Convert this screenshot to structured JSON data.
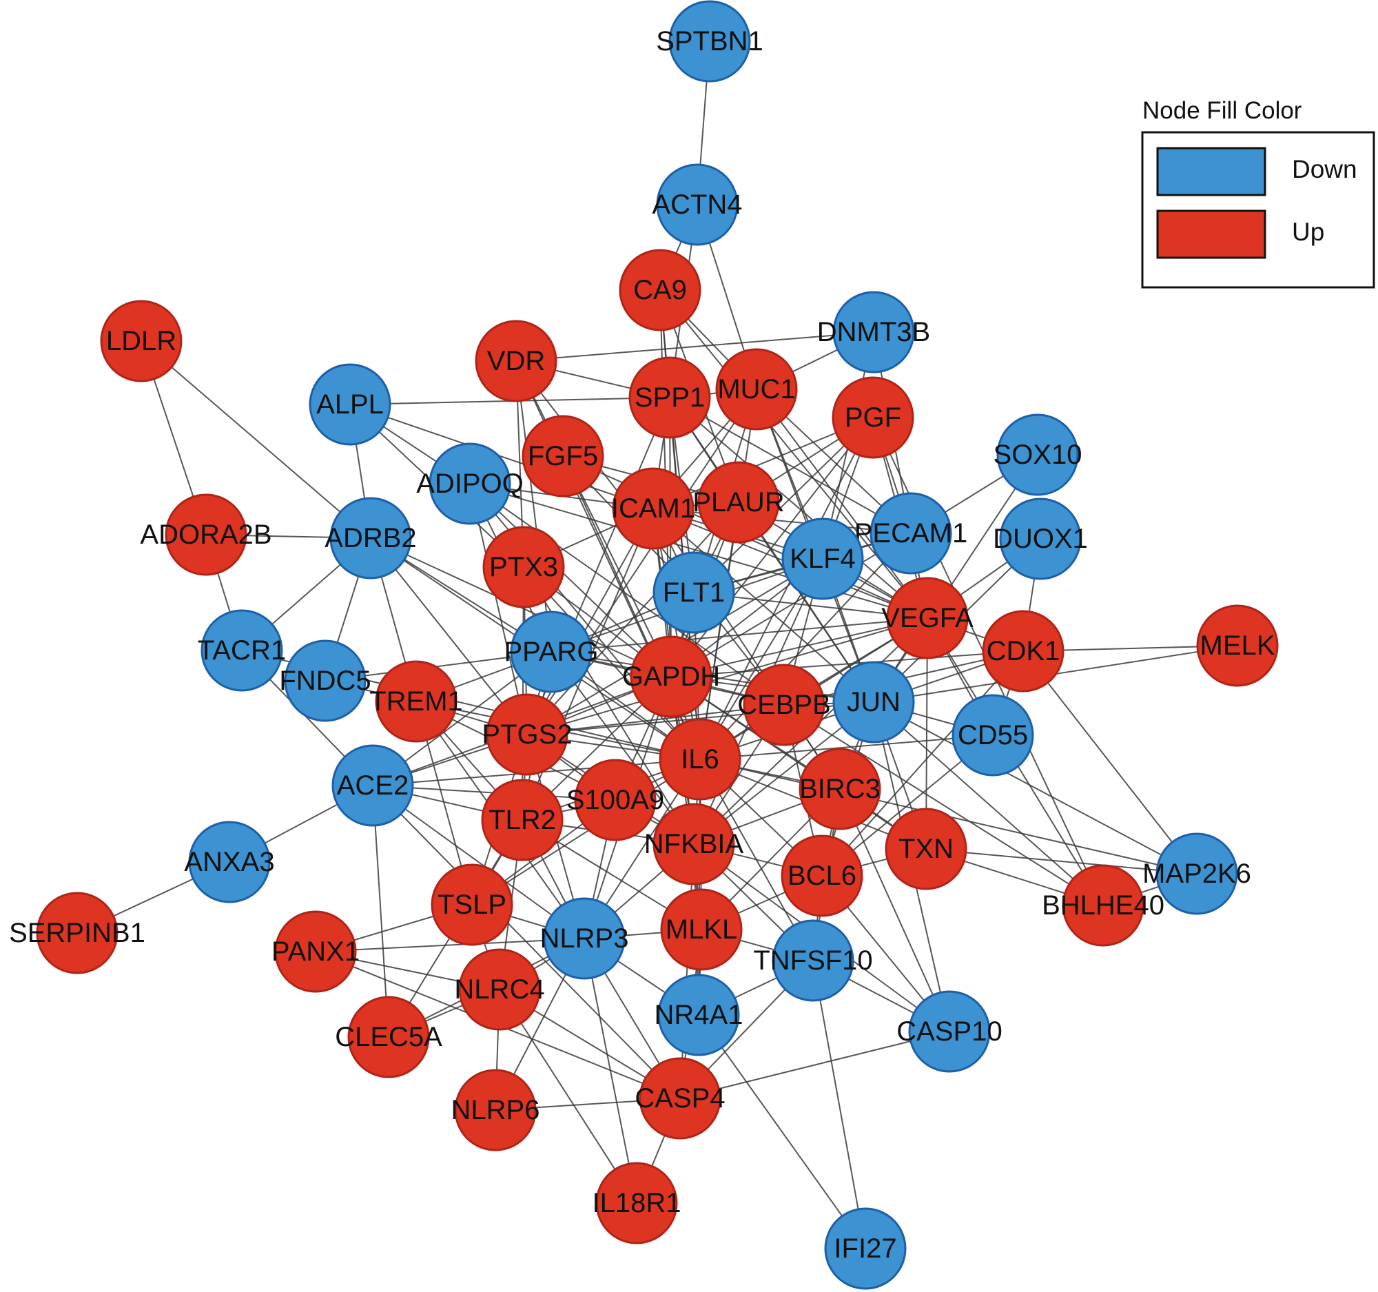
{
  "legend": {
    "title": "Node Fill Color",
    "items": [
      {
        "label": "Down",
        "color": "#3d92d2"
      },
      {
        "label": "Up",
        "color": "#dd3522"
      }
    ]
  },
  "colors": {
    "down": "#3d92d2",
    "up": "#dd3522",
    "edge": "#3a3a3a",
    "border_down": "#1d5fa8",
    "border_up": "#b02418"
  },
  "nodes": [
    {
      "id": "SPTBN1",
      "type": "down"
    },
    {
      "id": "ACTN4",
      "type": "down"
    },
    {
      "id": "CA9",
      "type": "up"
    },
    {
      "id": "LDLR",
      "type": "up"
    },
    {
      "id": "DNMT3B",
      "type": "down"
    },
    {
      "id": "VDR",
      "type": "up"
    },
    {
      "id": "ALPL",
      "type": "down"
    },
    {
      "id": "SPP1",
      "type": "up"
    },
    {
      "id": "MUC1",
      "type": "up"
    },
    {
      "id": "PGF",
      "type": "up"
    },
    {
      "id": "SOX10",
      "type": "down"
    },
    {
      "id": "FGF5",
      "type": "up"
    },
    {
      "id": "ADIPOQ",
      "type": "down"
    },
    {
      "id": "ICAM1",
      "type": "up"
    },
    {
      "id": "PLAUR",
      "type": "up"
    },
    {
      "id": "PECAM1",
      "type": "down"
    },
    {
      "id": "DUOX1",
      "type": "down"
    },
    {
      "id": "ADORA2B",
      "type": "up"
    },
    {
      "id": "ADRB2",
      "type": "down"
    },
    {
      "id": "KLF4",
      "type": "down"
    },
    {
      "id": "PTX3",
      "type": "up"
    },
    {
      "id": "FLT1",
      "type": "down"
    },
    {
      "id": "VEGFA",
      "type": "up"
    },
    {
      "id": "MELK",
      "type": "up"
    },
    {
      "id": "TACR1",
      "type": "down"
    },
    {
      "id": "PPARG",
      "type": "down"
    },
    {
      "id": "CDK1",
      "type": "up"
    },
    {
      "id": "FNDC5",
      "type": "down"
    },
    {
      "id": "GAPDH",
      "type": "up"
    },
    {
      "id": "TREM1",
      "type": "up"
    },
    {
      "id": "CEBPB",
      "type": "up"
    },
    {
      "id": "JUN",
      "type": "down"
    },
    {
      "id": "CD55",
      "type": "down"
    },
    {
      "id": "PTGS2",
      "type": "up"
    },
    {
      "id": "IL6",
      "type": "up"
    },
    {
      "id": "ACE2",
      "type": "down"
    },
    {
      "id": "BIRC3",
      "type": "up"
    },
    {
      "id": "S100A9",
      "type": "up"
    },
    {
      "id": "TLR2",
      "type": "up"
    },
    {
      "id": "NFKBIA",
      "type": "up"
    },
    {
      "id": "TXN",
      "type": "up"
    },
    {
      "id": "ANXA3",
      "type": "down"
    },
    {
      "id": "MAP2K6",
      "type": "down"
    },
    {
      "id": "BHLHE40",
      "type": "up"
    },
    {
      "id": "BCL6",
      "type": "up"
    },
    {
      "id": "TSLP",
      "type": "up"
    },
    {
      "id": "SERPINB1",
      "type": "up"
    },
    {
      "id": "NLRP3",
      "type": "down"
    },
    {
      "id": "MLKL",
      "type": "up"
    },
    {
      "id": "PANX1",
      "type": "up"
    },
    {
      "id": "TNFSF10",
      "type": "down"
    },
    {
      "id": "NLRC4",
      "type": "up"
    },
    {
      "id": "NR4A1",
      "type": "down"
    },
    {
      "id": "CASP10",
      "type": "down"
    },
    {
      "id": "CLEC5A",
      "type": "up"
    },
    {
      "id": "CASP4",
      "type": "up"
    },
    {
      "id": "NLRP6",
      "type": "up"
    },
    {
      "id": "IL18R1",
      "type": "up"
    },
    {
      "id": "IFI27",
      "type": "down"
    }
  ],
  "edges": [
    [
      "SPTBN1",
      "ACTN4"
    ],
    [
      "ACTN4",
      "CA9"
    ],
    [
      "ACTN4",
      "SPP1"
    ],
    [
      "ACTN4",
      "MUC1"
    ],
    [
      "VDR",
      "DNMT3B"
    ],
    [
      "ALPL",
      "SPP1"
    ],
    [
      "ALPL",
      "ADRB2"
    ],
    [
      "ALPL",
      "ADIPOQ"
    ],
    [
      "ALPL",
      "PTX3"
    ],
    [
      "ALPL",
      "ICAM1"
    ],
    [
      "LDLR",
      "ADORA2B"
    ],
    [
      "LDLR",
      "ADRB2"
    ],
    [
      "ADORA2B",
      "ADRB2"
    ],
    [
      "ADORA2B",
      "TACR1"
    ],
    [
      "ADRB2",
      "TACR1"
    ],
    [
      "ADRB2",
      "FNDC5"
    ],
    [
      "ADRB2",
      "PPARG"
    ],
    [
      "ADRB2",
      "GAPDH"
    ],
    [
      "ADRB2",
      "IL6"
    ],
    [
      "ADRB2",
      "TREM1"
    ],
    [
      "ADRB2",
      "PTGS2"
    ],
    [
      "TACR1",
      "ACE2"
    ],
    [
      "TACR1",
      "IL6"
    ],
    [
      "FNDC5",
      "PPARG"
    ],
    [
      "FNDC5",
      "TREM1"
    ],
    [
      "ANXA3",
      "SERPINB1"
    ],
    [
      "ANXA3",
      "ACE2"
    ],
    [
      "ACE2",
      "PPARG"
    ],
    [
      "ACE2",
      "IL6"
    ],
    [
      "ACE2",
      "GAPDH"
    ],
    [
      "ACE2",
      "TLR2"
    ],
    [
      "ACE2",
      "NLRP3"
    ],
    [
      "ACE2",
      "CLEC5A"
    ],
    [
      "ACE2",
      "CASP4"
    ],
    [
      "ACE2",
      "PTGS2"
    ],
    [
      "ACE2",
      "S100A9"
    ],
    [
      "PANX1",
      "NLRP3"
    ],
    [
      "PANX1",
      "NLRC4"
    ],
    [
      "PANX1",
      "TSLP"
    ],
    [
      "PANX1",
      "CASP4"
    ],
    [
      "CLEC5A",
      "NLRP3"
    ],
    [
      "CLEC5A",
      "TLR2"
    ],
    [
      "CLEC5A",
      "NLRC4"
    ],
    [
      "NLRP6",
      "NLRC4"
    ],
    [
      "NLRP6",
      "CASP4"
    ],
    [
      "NLRP6",
      "NLRP3"
    ],
    [
      "IL18R1",
      "NLRC4"
    ],
    [
      "IL18R1",
      "CASP4"
    ],
    [
      "IL18R1",
      "NLRP3"
    ],
    [
      "CASP4",
      "NLRP3"
    ],
    [
      "CASP4",
      "NLRC4"
    ],
    [
      "CASP4",
      "CASP10"
    ],
    [
      "CASP4",
      "TNFSF10"
    ],
    [
      "CASP4",
      "NFKBIA"
    ],
    [
      "IFI27",
      "TNFSF10"
    ],
    [
      "IFI27",
      "NR4A1"
    ],
    [
      "CASP10",
      "TNFSF10"
    ],
    [
      "CASP10",
      "BIRC3"
    ],
    [
      "CASP10",
      "BCL6"
    ],
    [
      "CASP10",
      "JUN"
    ],
    [
      "CASP10",
      "NFKBIA"
    ],
    [
      "MELK",
      "CDK1"
    ],
    [
      "MELK",
      "JUN"
    ],
    [
      "MAP2K6",
      "BHLHE40"
    ],
    [
      "MAP2K6",
      "TXN"
    ],
    [
      "MAP2K6",
      "JUN"
    ],
    [
      "MAP2K6",
      "IL6"
    ],
    [
      "MAP2K6",
      "CDK1"
    ],
    [
      "BHLHE40",
      "VEGFA"
    ],
    [
      "BHLHE40",
      "CEBPB"
    ],
    [
      "BHLHE40",
      "JUN"
    ],
    [
      "BHLHE40",
      "TXN"
    ],
    [
      "BHLHE40",
      "PGF"
    ],
    [
      "SOX10",
      "PECAM1"
    ],
    [
      "SOX10",
      "JUN"
    ],
    [
      "DUOX1",
      "CDK1"
    ],
    [
      "DUOX1",
      "VEGFA"
    ],
    [
      "DUOX1",
      "JUN"
    ],
    [
      "CDK1",
      "VEGFA"
    ],
    [
      "CDK1",
      "JUN"
    ],
    [
      "CDK1",
      "CEBPB"
    ],
    [
      "CDK1",
      "BCL6"
    ],
    [
      "CDK1",
      "CD55"
    ],
    [
      "CDK1",
      "GAPDH"
    ],
    [
      "CD55",
      "VEGFA"
    ],
    [
      "CD55",
      "IL6"
    ],
    [
      "CD55",
      "BCL6"
    ],
    [
      "CD55",
      "JUN"
    ],
    [
      "TXN",
      "BIRC3"
    ],
    [
      "TXN",
      "IL6"
    ],
    [
      "TXN",
      "GAPDH"
    ],
    [
      "TXN",
      "BCL6"
    ],
    [
      "DNMT3B",
      "PECAM1"
    ],
    [
      "DNMT3B",
      "KLF4"
    ],
    [
      "DNMT3B",
      "MUC1"
    ],
    [
      "CA9",
      "SPP1"
    ],
    [
      "CA9",
      "MUC1"
    ],
    [
      "CA9",
      "VEGFA"
    ],
    [
      "CA9",
      "GAPDH"
    ],
    [
      "CA9",
      "IL6"
    ],
    [
      "CA9",
      "PLAUR"
    ],
    [
      "VDR",
      "SPP1"
    ],
    [
      "VDR",
      "PTX3"
    ],
    [
      "VDR",
      "IL6"
    ],
    [
      "VDR",
      "PPARG"
    ],
    [
      "VDR",
      "CEBPB"
    ],
    [
      "VDR",
      "FGF5"
    ],
    [
      "SPP1",
      "MUC1"
    ],
    [
      "SPP1",
      "ICAM1"
    ],
    [
      "SPP1",
      "PLAUR"
    ],
    [
      "SPP1",
      "GAPDH"
    ],
    [
      "SPP1",
      "IL6"
    ],
    [
      "SPP1",
      "PTGS2"
    ],
    [
      "SPP1",
      "VEGFA"
    ],
    [
      "SPP1",
      "FLT1"
    ],
    [
      "SPP1",
      "PECAM1"
    ],
    [
      "SPP1",
      "JUN"
    ],
    [
      "MUC1",
      "ICAM1"
    ],
    [
      "MUC1",
      "IL6"
    ],
    [
      "MUC1",
      "GAPDH"
    ],
    [
      "MUC1",
      "VEGFA"
    ],
    [
      "MUC1",
      "KLF4"
    ],
    [
      "MUC1",
      "PECAM1"
    ],
    [
      "MUC1",
      "PTGS2"
    ],
    [
      "MUC1",
      "JUN"
    ],
    [
      "PGF",
      "VEGFA"
    ],
    [
      "PGF",
      "FLT1"
    ],
    [
      "PGF",
      "PLAUR"
    ],
    [
      "PGF",
      "PECAM1"
    ],
    [
      "PGF",
      "KLF4"
    ],
    [
      "PGF",
      "ICAM1"
    ],
    [
      "PGF",
      "GAPDH"
    ],
    [
      "PGF",
      "IL6"
    ],
    [
      "FGF5",
      "VEGFA"
    ],
    [
      "FGF5",
      "FLT1"
    ],
    [
      "FGF5",
      "GAPDH"
    ],
    [
      "FGF5",
      "IL6"
    ],
    [
      "FGF5",
      "PLAUR"
    ],
    [
      "ADIPOQ",
      "PPARG"
    ],
    [
      "ADIPOQ",
      "IL6"
    ],
    [
      "ADIPOQ",
      "ICAM1"
    ],
    [
      "ADIPOQ",
      "GAPDH"
    ],
    [
      "ADIPOQ",
      "PTGS2"
    ],
    [
      "ADIPOQ",
      "CEBPB"
    ],
    [
      "ADIPOQ",
      "VEGFA"
    ],
    [
      "ICAM1",
      "PLAUR"
    ],
    [
      "ICAM1",
      "IL6"
    ],
    [
      "ICAM1",
      "GAPDH"
    ],
    [
      "ICAM1",
      "VEGFA"
    ],
    [
      "ICAM1",
      "PECAM1"
    ],
    [
      "ICAM1",
      "FLT1"
    ],
    [
      "ICAM1",
      "TLR2"
    ],
    [
      "ICAM1",
      "NFKBIA"
    ],
    [
      "ICAM1",
      "PTGS2"
    ],
    [
      "ICAM1",
      "JUN"
    ],
    [
      "ICAM1",
      "KLF4"
    ],
    [
      "ICAM1",
      "BIRC3"
    ],
    [
      "PLAUR",
      "VEGFA"
    ],
    [
      "PLAUR",
      "IL6"
    ],
    [
      "PLAUR",
      "FLT1"
    ],
    [
      "PLAUR",
      "GAPDH"
    ],
    [
      "PLAUR",
      "PTGS2"
    ],
    [
      "PLAUR",
      "JUN"
    ],
    [
      "PECAM1",
      "VEGFA"
    ],
    [
      "PECAM1",
      "FLT1"
    ],
    [
      "PECAM1",
      "KLF4"
    ],
    [
      "PECAM1",
      "IL6"
    ],
    [
      "PECAM1",
      "GAPDH"
    ],
    [
      "KLF4",
      "VEGFA"
    ],
    [
      "KLF4",
      "IL6"
    ],
    [
      "KLF4",
      "GAPDH"
    ],
    [
      "KLF4",
      "CEBPB"
    ],
    [
      "KLF4",
      "PPARG"
    ],
    [
      "KLF4",
      "JUN"
    ],
    [
      "KLF4",
      "NFKBIA"
    ],
    [
      "KLF4",
      "PTGS2"
    ],
    [
      "PTX3",
      "IL6"
    ],
    [
      "PTX3",
      "TLR2"
    ],
    [
      "PTX3",
      "GAPDH"
    ],
    [
      "PTX3",
      "PTGS2"
    ],
    [
      "PTX3",
      "NFKBIA"
    ],
    [
      "PTX3",
      "ICAM1"
    ],
    [
      "FLT1",
      "VEGFA"
    ],
    [
      "FLT1",
      "GAPDH"
    ],
    [
      "FLT1",
      "IL6"
    ],
    [
      "FLT1",
      "PPARG"
    ],
    [
      "FLT1",
      "KLF4"
    ],
    [
      "VEGFA",
      "IL6"
    ],
    [
      "VEGFA",
      "GAPDH"
    ],
    [
      "VEGFA",
      "JUN"
    ],
    [
      "VEGFA",
      "PTGS2"
    ],
    [
      "VEGFA",
      "PPARG"
    ],
    [
      "VEGFA",
      "CEBPB"
    ],
    [
      "VEGFA",
      "NFKBIA"
    ],
    [
      "VEGFA",
      "TXN"
    ],
    [
      "PPARG",
      "IL6"
    ],
    [
      "PPARG",
      "GAPDH"
    ],
    [
      "PPARG",
      "CEBPB"
    ],
    [
      "PPARG",
      "PTGS2"
    ],
    [
      "PPARG",
      "TLR2"
    ],
    [
      "PPARG",
      "NFKBIA"
    ],
    [
      "PPARG",
      "JUN"
    ],
    [
      "PPARG",
      "TREM1"
    ],
    [
      "GAPDH",
      "IL6"
    ],
    [
      "GAPDH",
      "PTGS2"
    ],
    [
      "GAPDH",
      "CEBPB"
    ],
    [
      "GAPDH",
      "JUN"
    ],
    [
      "GAPDH",
      "TLR2"
    ],
    [
      "GAPDH",
      "NFKBIA"
    ],
    [
      "GAPDH",
      "S100A9"
    ],
    [
      "GAPDH",
      "BIRC3"
    ],
    [
      "GAPDH",
      "MLKL"
    ],
    [
      "GAPDH",
      "NLRP3"
    ],
    [
      "TREM1",
      "TLR2"
    ],
    [
      "TREM1",
      "IL6"
    ],
    [
      "TREM1",
      "NLRP3"
    ],
    [
      "TREM1",
      "S100A9"
    ],
    [
      "TREM1",
      "PTGS2"
    ],
    [
      "TREM1",
      "TSLP"
    ],
    [
      "CEBPB",
      "IL6"
    ],
    [
      "CEBPB",
      "JUN"
    ],
    [
      "CEBPB",
      "PTGS2"
    ],
    [
      "CEBPB",
      "NFKBIA"
    ],
    [
      "CEBPB",
      "BCL6"
    ],
    [
      "CEBPB",
      "BIRC3"
    ],
    [
      "JUN",
      "IL6"
    ],
    [
      "JUN",
      "BIRC3"
    ],
    [
      "JUN",
      "NFKBIA"
    ],
    [
      "JUN",
      "PTGS2"
    ],
    [
      "JUN",
      "BCL6"
    ],
    [
      "JUN",
      "TXN"
    ],
    [
      "PTGS2",
      "IL6"
    ],
    [
      "PTGS2",
      "TLR2"
    ],
    [
      "PTGS2",
      "NFKBIA"
    ],
    [
      "PTGS2",
      "S100A9"
    ],
    [
      "PTGS2",
      "NLRP3"
    ],
    [
      "PTGS2",
      "TSLP"
    ],
    [
      "IL6",
      "S100A9"
    ],
    [
      "IL6",
      "TLR2"
    ],
    [
      "IL6",
      "NFKBIA"
    ],
    [
      "IL6",
      "BIRC3"
    ],
    [
      "IL6",
      "BCL6"
    ],
    [
      "IL6",
      "NLRP3"
    ],
    [
      "IL6",
      "MLKL"
    ],
    [
      "IL6",
      "TSLP"
    ],
    [
      "IL6",
      "TNFSF10"
    ],
    [
      "IL6",
      "NR4A1"
    ],
    [
      "BIRC3",
      "NFKBIA"
    ],
    [
      "BIRC3",
      "BCL6"
    ],
    [
      "BIRC3",
      "TNFSF10"
    ],
    [
      "BIRC3",
      "MLKL"
    ],
    [
      "S100A9",
      "TLR2"
    ],
    [
      "S100A9",
      "NFKBIA"
    ],
    [
      "S100A9",
      "NLRP3"
    ],
    [
      "S100A9",
      "TSLP"
    ],
    [
      "TLR2",
      "NFKBIA"
    ],
    [
      "TLR2",
      "NLRP3"
    ],
    [
      "TLR2",
      "TSLP"
    ],
    [
      "TLR2",
      "NLRC4"
    ],
    [
      "TLR2",
      "MLKL"
    ],
    [
      "NFKBIA",
      "BCL6"
    ],
    [
      "NFKBIA",
      "MLKL"
    ],
    [
      "NFKBIA",
      "NLRP3"
    ],
    [
      "NFKBIA",
      "TNFSF10"
    ],
    [
      "NFKBIA",
      "NR4A1"
    ],
    [
      "BCL6",
      "TNFSF10"
    ],
    [
      "BCL6",
      "MLKL"
    ],
    [
      "TSLP",
      "NLRP3"
    ],
    [
      "TSLP",
      "NLRC4"
    ],
    [
      "NLRP3",
      "NLRC4"
    ],
    [
      "NLRP3",
      "MLKL"
    ],
    [
      "NLRP3",
      "NR4A1"
    ],
    [
      "MLKL",
      "TNFSF10"
    ],
    [
      "MLKL",
      "NR4A1"
    ],
    [
      "MLKL",
      "CASP4"
    ],
    [
      "TNFSF10",
      "NR4A1"
    ]
  ]
}
